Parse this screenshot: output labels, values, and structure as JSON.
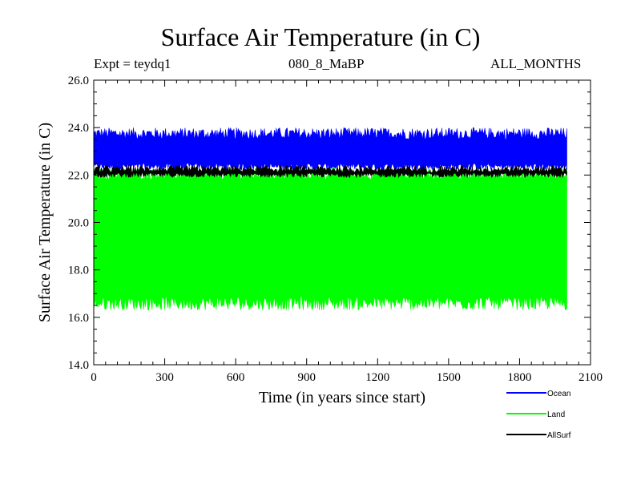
{
  "chart_data": {
    "type": "line",
    "title": "Surface Air Temperature (in C)",
    "subtitle_left": "Expt = teydq1",
    "subtitle_center": "080_8_MaBP",
    "subtitle_right": "ALL_MONTHS",
    "xlabel": "Time (in years since start)",
    "ylabel": "Surface Air Temperature (in C)",
    "xlim": [
      0,
      2100
    ],
    "ylim": [
      14,
      26
    ],
    "x_ticks": [
      0,
      300,
      600,
      900,
      1200,
      1500,
      1800,
      2100
    ],
    "x_tick_labels": [
      "0",
      "300",
      "600",
      "900",
      "1200",
      "1500",
      "1800",
      "2100"
    ],
    "y_ticks": [
      14,
      16,
      18,
      20,
      22,
      24,
      26
    ],
    "y_tick_labels": [
      "14.0",
      "16.0",
      "18.0",
      "20.0",
      "22.0",
      "24.0",
      "26.0"
    ],
    "x_end": 2000,
    "series": [
      {
        "name": "Ocean",
        "color": "#0000ff",
        "min_band": [
          22.2,
          22.5
        ],
        "max_band": [
          23.5,
          24.0
        ]
      },
      {
        "name": "Land",
        "color": "#00ff00",
        "min_band": [
          16.3,
          16.9
        ],
        "max_band": [
          21.8,
          22.3
        ]
      },
      {
        "name": "AllSurf",
        "color": "#000000",
        "min_band": [
          21.9,
          22.1
        ],
        "max_band": [
          22.1,
          22.4
        ]
      }
    ],
    "legend_position": "bottom-right"
  }
}
